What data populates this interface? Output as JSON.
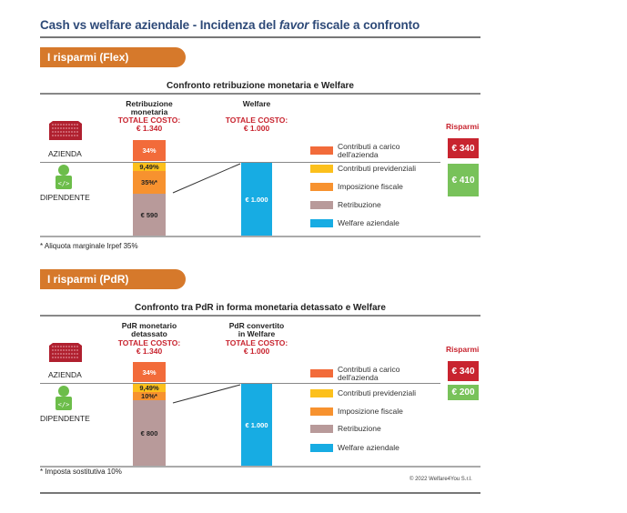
{
  "page": {
    "title_before": "Cash vs welfare aziendale - Incidenza del ",
    "title_italic": "favor",
    "title_after": " fiscale a confronto",
    "copyright": "© 2022 Welfare4You S.r.l."
  },
  "colors": {
    "contributi_azienda": "#f26b3a",
    "contributi_previdenziali": "#fcc01c",
    "imposizione_fiscale": "#f7922f",
    "retribuzione": "#b89a9a",
    "welfare_aziendale": "#17ace3",
    "savings_company": "#c8242f",
    "savings_employee": "#78c25a",
    "section_pill": "#d6792b",
    "title": "#2e4a78"
  },
  "legend": [
    {
      "key": "contributi_azienda",
      "label": "Contributi a carico\ndell'azienda"
    },
    {
      "key": "contributi_previdenziali",
      "label": "Contributi previdenziali"
    },
    {
      "key": "imposizione_fiscale",
      "label": "Imposizione fiscale"
    },
    {
      "key": "retribuzione",
      "label": "Retribuzione"
    },
    {
      "key": "welfare_aziendale",
      "label": "Welfare aziendale"
    }
  ],
  "labels": {
    "azienda": "AZIENDA",
    "dipendente": "DIPENDENTE",
    "risparmi": "Risparmi"
  },
  "chart_data": [
    {
      "type": "bar",
      "section": "I risparmi (Flex)",
      "title": "Confronto retribuzione monetaria e Welfare",
      "columns": [
        {
          "name": "Retribuzione\nmonetaria",
          "total_cost": "TOTALE COSTO:\n€ 1.340",
          "total_value": 1340,
          "segments": [
            {
              "key": "contributi_azienda",
              "label": "34%",
              "value": 340
            },
            {
              "key": "contributi_previdenziali",
              "label": "9,49%",
              "value": 95
            },
            {
              "key": "imposizione_fiscale",
              "label": "35%*",
              "value": 315
            },
            {
              "key": "retribuzione",
              "label": "€ 590",
              "value": 590
            }
          ]
        },
        {
          "name": "Welfare",
          "total_cost": "TOTALE COSTO:\n€ 1.000",
          "total_value": 1000,
          "segments": [
            {
              "key": "welfare_aziendale",
              "label": "€ 1.000",
              "value": 1000
            }
          ]
        }
      ],
      "savings": {
        "company": "€ 340",
        "employee": "€ 410"
      },
      "footnote": "* Aliquota  marginale Irpef 35%"
    },
    {
      "type": "bar",
      "section": "I risparmi (PdR)",
      "title": "Confronto tra PdR in forma monetaria detassato e Welfare",
      "columns": [
        {
          "name": "PdR monetario\ndetassato",
          "total_cost": "TOTALE COSTO:\n€ 1.340",
          "total_value": 1340,
          "segments": [
            {
              "key": "contributi_azienda",
              "label": "34%",
              "value": 340
            },
            {
              "key": "contributi_previdenziali",
              "label": "9,49%",
              "value": 95
            },
            {
              "key": "imposizione_fiscale",
              "label": "10%*",
              "value": 105
            },
            {
              "key": "retribuzione",
              "label": "€ 800",
              "value": 800
            }
          ]
        },
        {
          "name": "PdR convertito\nin Welfare",
          "total_cost": "TOTALE COSTO:\n€ 1.000",
          "total_value": 1000,
          "segments": [
            {
              "key": "welfare_aziendale",
              "label": "€ 1.000",
              "value": 1000
            }
          ]
        }
      ],
      "savings": {
        "company": "€ 340",
        "employee": "€ 200"
      },
      "footnote": "* Imposta sostitutiva 10%"
    }
  ]
}
